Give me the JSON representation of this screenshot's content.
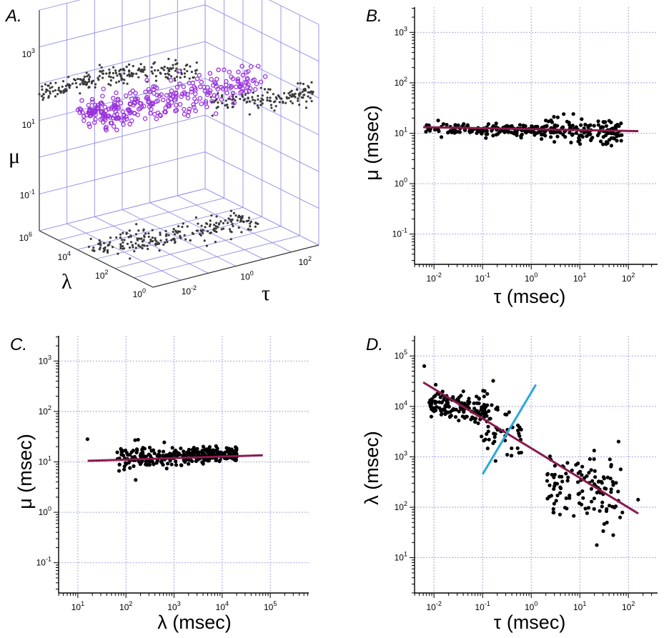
{
  "colors": {
    "points": "#000000",
    "points3d_shadow": "#3a3a3a",
    "points3d_main": "#9933dd",
    "fit_line": "#8a1a4e",
    "sep_line": "#2aa8dc",
    "grid": "#9a9ae0"
  },
  "chart_data": [
    {
      "panel": "A.",
      "type": "scatter",
      "dimensions": 3,
      "axes": {
        "mu": {
          "label": "μ",
          "ticks": [
            {
              "b": "10",
              "e": "3"
            },
            {
              "b": "10",
              "e": "1"
            },
            {
              "b": "10",
              "e": "-1"
            }
          ]
        },
        "lambda": {
          "label": "λ",
          "ticks": [
            {
              "b": "10",
              "e": "6"
            },
            {
              "b": "10",
              "e": "4"
            },
            {
              "b": "10",
              "e": "2"
            },
            {
              "b": "10",
              "e": "0"
            }
          ]
        },
        "tau": {
          "label": "τ",
          "ticks": [
            {
              "b": "10",
              "e": "-2"
            },
            {
              "b": "10",
              "e": "0"
            },
            {
              "b": "10",
              "e": "2"
            }
          ]
        }
      },
      "scale": "log"
    },
    {
      "panel": "B.",
      "type": "scatter",
      "xlabel": "τ (msec)",
      "ylabel": "μ (msec)",
      "xscale": "log",
      "yscale": "log",
      "xlim_log10": [
        -2.4,
        2.6
      ],
      "ylim_log10": [
        -1.6,
        3.5
      ],
      "xticks": [
        {
          "b": "10",
          "e": "-2"
        },
        {
          "b": "10",
          "e": "-1"
        },
        {
          "b": "10",
          "e": "0"
        },
        {
          "b": "10",
          "e": "1"
        },
        {
          "b": "10",
          "e": "2"
        }
      ],
      "yticks": [
        {
          "b": "10",
          "e": "-1"
        },
        {
          "b": "10",
          "e": "0"
        },
        {
          "b": "10",
          "e": "1"
        },
        {
          "b": "10",
          "e": "2"
        },
        {
          "b": "10",
          "e": "3"
        }
      ],
      "fit_line": [
        [
          0.006,
          13.2
        ],
        [
          160,
          11.0
        ]
      ],
      "cluster": {
        "x_log10_range": [
          -2.2,
          2.0
        ],
        "y_center_log10": 1.06,
        "n": 320
      }
    },
    {
      "panel": "C.",
      "type": "scatter",
      "xlabel": "λ (msec)",
      "ylabel": "μ (msec)",
      "xscale": "log",
      "yscale": "log",
      "xlim_log10": [
        0.6,
        5.8
      ],
      "ylim_log10": [
        -1.6,
        3.5
      ],
      "xticks": [
        {
          "b": "10",
          "e": "1"
        },
        {
          "b": "10",
          "e": "2"
        },
        {
          "b": "10",
          "e": "3"
        },
        {
          "b": "10",
          "e": "4"
        },
        {
          "b": "10",
          "e": "5"
        }
      ],
      "yticks": [
        {
          "b": "10",
          "e": "-1"
        },
        {
          "b": "10",
          "e": "0"
        },
        {
          "b": "10",
          "e": "1"
        },
        {
          "b": "10",
          "e": "2"
        },
        {
          "b": "10",
          "e": "3"
        }
      ],
      "fit_line": [
        [
          16,
          10.5
        ],
        [
          70000,
          13.5
        ]
      ],
      "cluster": {
        "x_log10_range": [
          1.8,
          4.3
        ],
        "y_center_log10": 1.06,
        "n": 320
      }
    },
    {
      "panel": "D.",
      "type": "scatter",
      "xlabel": "τ (msec)",
      "ylabel": "λ (msec)",
      "xscale": "log",
      "yscale": "log",
      "xlim_log10": [
        -2.4,
        2.6
      ],
      "ylim_log10": [
        0.3,
        5.4
      ],
      "xticks": [
        {
          "b": "10",
          "e": "-2"
        },
        {
          "b": "10",
          "e": "-1"
        },
        {
          "b": "10",
          "e": "0"
        },
        {
          "b": "10",
          "e": "1"
        },
        {
          "b": "10",
          "e": "2"
        }
      ],
      "yticks": [
        {
          "b": "10",
          "e": "1"
        },
        {
          "b": "10",
          "e": "2"
        },
        {
          "b": "10",
          "e": "3"
        },
        {
          "b": "10",
          "e": "4"
        },
        {
          "b": "10",
          "e": "5"
        }
      ],
      "fit_line": [
        [
          0.006,
          30000
        ],
        [
          160,
          75
        ]
      ],
      "separator_line": [
        [
          0.1,
          450
        ],
        [
          1.25,
          27000
        ]
      ],
      "cluster": {
        "n": 320
      }
    }
  ]
}
